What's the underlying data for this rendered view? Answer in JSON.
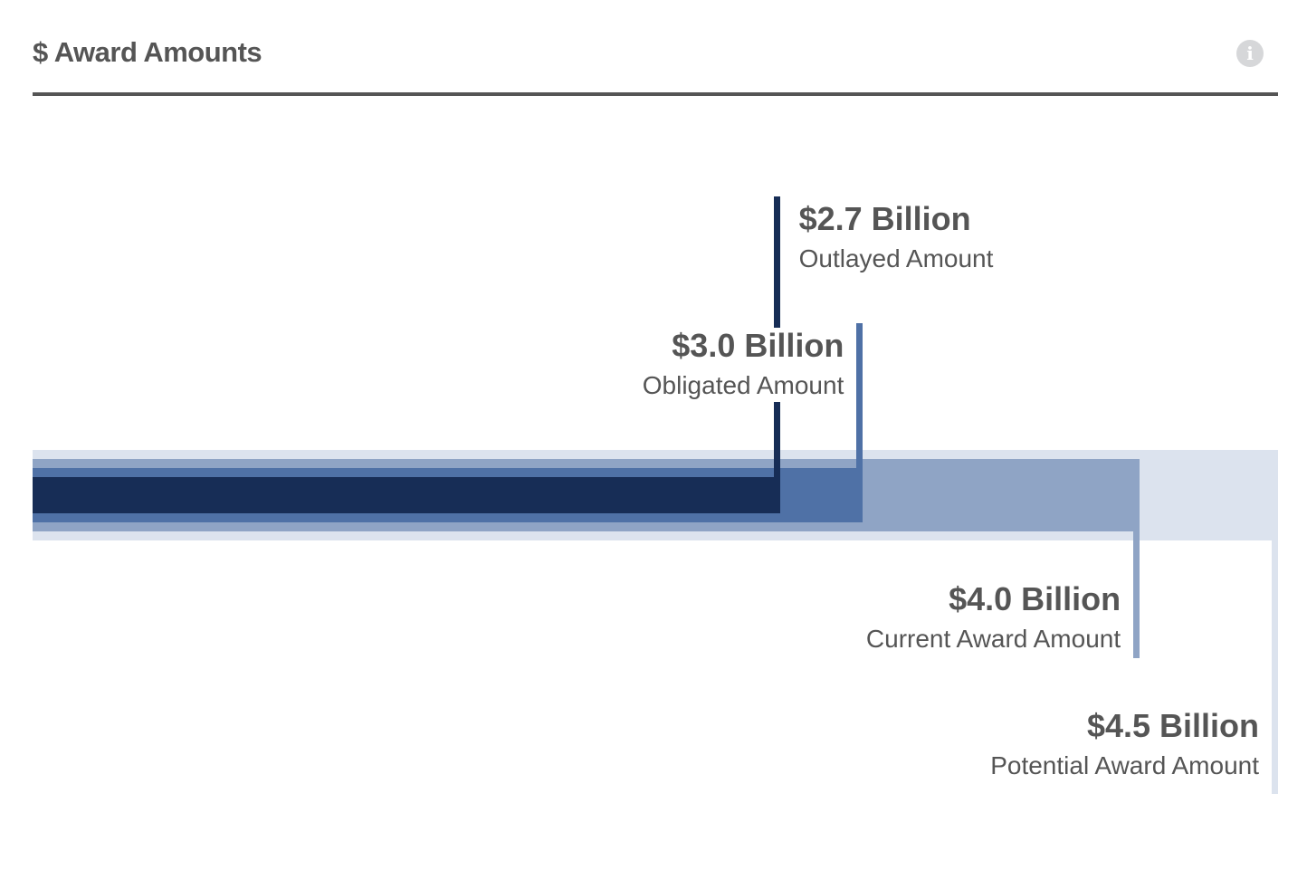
{
  "header": {
    "title": "$ Award Amounts",
    "info_icon": "info-circle-icon"
  },
  "chart_data": {
    "type": "bar",
    "orientation": "horizontal-nested",
    "unit": "Billion USD",
    "xlim": [
      0,
      4.5
    ],
    "series": [
      {
        "key": "potential",
        "value": 4.5,
        "value_label": "$4.5 Billion",
        "description": "Potential Award Amount",
        "color": "#dce3ee"
      },
      {
        "key": "current",
        "value": 4.0,
        "value_label": "$4.0 Billion",
        "description": "Current Award Amount",
        "color": "#8fa4c5"
      },
      {
        "key": "obligated",
        "value": 3.0,
        "value_label": "$3.0 Billion",
        "description": "Obligated Amount",
        "color": "#4f71a6"
      },
      {
        "key": "outlayed",
        "value": 2.7,
        "value_label": "$2.7 Billion",
        "description": "Outlayed Amount",
        "color": "#172d56"
      }
    ]
  }
}
